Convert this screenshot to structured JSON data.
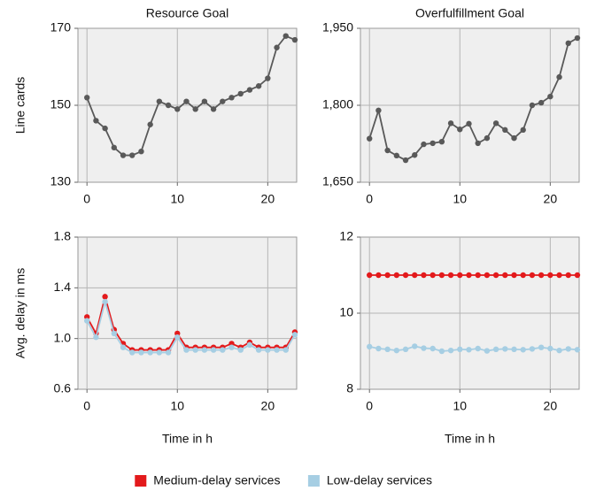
{
  "chart_data": [
    {
      "type": "line",
      "title": "Resource Goal",
      "ylabel": "Line cards",
      "x": [
        0,
        1,
        2,
        3,
        4,
        5,
        6,
        7,
        8,
        9,
        10,
        11,
        12,
        13,
        14,
        15,
        16,
        17,
        18,
        19,
        20,
        21,
        22,
        23
      ],
      "series": [
        {
          "color": "#595959",
          "values": [
            152,
            146,
            144,
            139,
            137,
            137,
            138,
            145,
            151,
            150,
            149,
            151,
            149,
            151,
            149,
            151,
            152,
            153,
            154,
            155,
            157,
            165,
            168,
            167
          ]
        }
      ],
      "xlim": [
        -1,
        23.2
      ],
      "xticks": [
        0,
        10,
        20
      ],
      "ylim": [
        130,
        170
      ],
      "yticks": [
        130,
        150,
        170
      ],
      "grid": true
    },
    {
      "type": "line",
      "title": "Overfulfillment Goal",
      "x": [
        0,
        1,
        2,
        3,
        4,
        5,
        6,
        7,
        8,
        9,
        10,
        11,
        12,
        13,
        14,
        15,
        16,
        17,
        18,
        19,
        20,
        21,
        22,
        23
      ],
      "series": [
        {
          "color": "#595959",
          "values": [
            1735,
            1790,
            1712,
            1702,
            1693,
            1703,
            1724,
            1726,
            1729,
            1765,
            1753,
            1764,
            1726,
            1736,
            1765,
            1752,
            1736,
            1752,
            1800,
            1805,
            1817,
            1855,
            1921,
            1931
          ]
        }
      ],
      "xlim": [
        -1,
        23.2
      ],
      "xticks": [
        0,
        10,
        20
      ],
      "ylim": [
        1650,
        1950
      ],
      "yticks": [
        {
          "value": 1650,
          "label": "1,650"
        },
        {
          "value": 1800,
          "label": "1,800"
        },
        {
          "value": 1950,
          "label": "1,950"
        }
      ],
      "grid": true
    },
    {
      "type": "line",
      "ylabel": "Avg. delay in ms",
      "xlabel": "Time in h",
      "legend": "bottom",
      "x": [
        0,
        1,
        2,
        3,
        4,
        5,
        6,
        7,
        8,
        9,
        10,
        11,
        12,
        13,
        14,
        15,
        16,
        17,
        18,
        19,
        20,
        21,
        22,
        23
      ],
      "series": [
        {
          "name": "Medium-delay services",
          "color": "#e31a1c",
          "values": [
            1.17,
            1.04,
            1.33,
            1.07,
            0.96,
            0.91,
            0.91,
            0.91,
            0.91,
            0.91,
            1.04,
            0.93,
            0.93,
            0.93,
            0.93,
            0.93,
            0.96,
            0.93,
            0.97,
            0.93,
            0.93,
            0.93,
            0.93,
            1.05
          ]
        },
        {
          "name": "Low-delay services",
          "color": "#a6cee3",
          "values": [
            1.14,
            1.01,
            1.29,
            1.04,
            0.93,
            0.89,
            0.89,
            0.89,
            0.89,
            0.89,
            1.01,
            0.91,
            0.91,
            0.91,
            0.91,
            0.91,
            0.93,
            0.91,
            0.95,
            0.91,
            0.91,
            0.91,
            0.91,
            1.03
          ]
        }
      ],
      "xlim": [
        -1,
        23.2
      ],
      "xticks": [
        0,
        10,
        20
      ],
      "ylim": [
        0.6,
        1.8
      ],
      "yticks": [
        0.6,
        {
          "value": 1.0,
          "label": "1.0"
        },
        1.4,
        1.8
      ],
      "grid": true
    },
    {
      "type": "line",
      "xlabel": "Time in h",
      "x": [
        0,
        1,
        2,
        3,
        4,
        5,
        6,
        7,
        8,
        9,
        10,
        11,
        12,
        13,
        14,
        15,
        16,
        17,
        18,
        19,
        20,
        21,
        22,
        23
      ],
      "series": [
        {
          "color": "#e31a1c",
          "values": [
            11,
            11,
            11,
            11,
            11,
            11,
            11,
            11,
            11,
            11,
            11,
            11,
            11,
            11,
            11,
            11,
            11,
            11,
            11,
            11,
            11,
            11,
            11,
            11
          ]
        },
        {
          "color": "#a6cee3",
          "values": [
            9.12,
            9.07,
            9.05,
            9.02,
            9.05,
            9.13,
            9.08,
            9.07,
            9.0,
            9.02,
            9.05,
            9.04,
            9.07,
            9.01,
            9.05,
            9.06,
            9.05,
            9.04,
            9.06,
            9.1,
            9.07,
            9.02,
            9.06,
            9.04
          ]
        }
      ],
      "xlim": [
        -1,
        23.2
      ],
      "xticks": [
        0,
        10,
        20
      ],
      "ylim": [
        8,
        12
      ],
      "yticks": [
        8,
        10,
        12
      ],
      "grid": true
    }
  ]
}
